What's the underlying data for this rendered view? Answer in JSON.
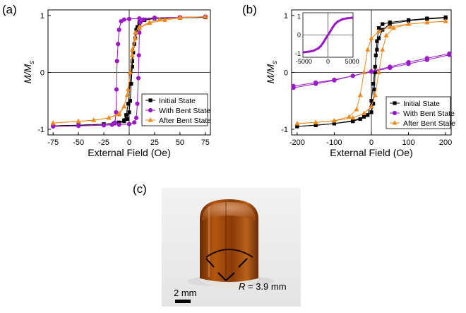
{
  "panel_labels": {
    "a": "(a)",
    "b": "(b)",
    "c": "(c)"
  },
  "colors": {
    "initial": "#000000",
    "bent": "#9b19c8",
    "after": "#f0891b"
  },
  "chart_data": [
    {
      "id": "a",
      "type": "scatter",
      "xlabel": "External Field (Oe)",
      "ylabel_main": "M/M",
      "ylabel_sub": "s",
      "xlim": [
        -80,
        80
      ],
      "ylim": [
        -1.1,
        1.1
      ],
      "xticks": [
        -75,
        -50,
        -25,
        0,
        25,
        50,
        75
      ],
      "xtick_labels": [
        "-75",
        "-50",
        "-25",
        "0",
        "25",
        "50",
        "75"
      ],
      "yticks": [
        1,
        0,
        -1
      ],
      "ytick_labels": [
        "1",
        "0",
        "-1"
      ],
      "legend_position": "bottom-right",
      "series": [
        {
          "name": "Initial State",
          "marker": "square",
          "color": "#000000",
          "sweep_down": [
            [
              75,
              0.97
            ],
            [
              50,
              0.96
            ],
            [
              25,
              0.95
            ],
            [
              15,
              0.93
            ],
            [
              10,
              0.88
            ],
            [
              8,
              0.8
            ],
            [
              6,
              0.6
            ],
            [
              4,
              0.35
            ],
            [
              3,
              0.1
            ],
            [
              2,
              -0.2
            ],
            [
              1,
              -0.5
            ],
            [
              0,
              -0.7
            ],
            [
              -2,
              -0.82
            ],
            [
              -5,
              -0.86
            ],
            [
              -10,
              -0.89
            ],
            [
              -25,
              -0.91
            ],
            [
              -50,
              -0.93
            ],
            [
              -75,
              -0.94
            ]
          ],
          "sweep_up": [
            [
              -75,
              -0.94
            ],
            [
              -50,
              -0.93
            ],
            [
              -25,
              -0.91
            ],
            [
              -15,
              -0.9
            ],
            [
              -10,
              -0.88
            ],
            [
              -5,
              -0.84
            ],
            [
              -3,
              -0.75
            ],
            [
              -1,
              -0.55
            ],
            [
              1,
              -0.2
            ],
            [
              3,
              0.2
            ],
            [
              5,
              0.5
            ],
            [
              7,
              0.75
            ],
            [
              10,
              0.86
            ],
            [
              15,
              0.92
            ],
            [
              25,
              0.95
            ],
            [
              50,
              0.96
            ],
            [
              75,
              0.97
            ]
          ]
        },
        {
          "name": "With Bent State",
          "marker": "circle",
          "color": "#9b19c8",
          "sweep_down": [
            [
              75,
              0.98
            ],
            [
              50,
              0.97
            ],
            [
              25,
              0.96
            ],
            [
              10,
              0.95
            ],
            [
              0,
              0.94
            ],
            [
              -5,
              0.93
            ],
            [
              -8,
              0.9
            ],
            [
              -10,
              0.75
            ],
            [
              -11,
              0.5
            ],
            [
              -12,
              0.2
            ],
            [
              -12.5,
              -0.3
            ],
            [
              -13,
              -0.7
            ],
            [
              -14,
              -0.88
            ],
            [
              -17,
              -0.92
            ],
            [
              -25,
              -0.93
            ],
            [
              -50,
              -0.94
            ],
            [
              -75,
              -0.95
            ]
          ],
          "sweep_up": [
            [
              -75,
              -0.95
            ],
            [
              -50,
              -0.94
            ],
            [
              -25,
              -0.93
            ],
            [
              -10,
              -0.92
            ],
            [
              0,
              -0.91
            ],
            [
              5,
              -0.88
            ],
            [
              7,
              -0.8
            ],
            [
              8,
              -0.55
            ],
            [
              9,
              -0.1
            ],
            [
              9.5,
              0.3
            ],
            [
              10,
              0.7
            ],
            [
              11,
              0.88
            ],
            [
              14,
              0.93
            ],
            [
              25,
              0.96
            ],
            [
              50,
              0.97
            ],
            [
              75,
              0.98
            ]
          ]
        },
        {
          "name": "After Bent State",
          "marker": "triangle",
          "color": "#f0891b",
          "sweep_down": [
            [
              75,
              0.98
            ],
            [
              50,
              0.97
            ],
            [
              30,
              0.93
            ],
            [
              20,
              0.88
            ],
            [
              10,
              0.8
            ],
            [
              6,
              0.7
            ],
            [
              3,
              0.4
            ],
            [
              1,
              0.0
            ],
            [
              -2,
              -0.4
            ],
            [
              -5,
              -0.6
            ],
            [
              -10,
              -0.72
            ],
            [
              -20,
              -0.8
            ],
            [
              -35,
              -0.84
            ],
            [
              -50,
              -0.86
            ],
            [
              -75,
              -0.89
            ]
          ],
          "sweep_up": [
            [
              -75,
              -0.89
            ],
            [
              -50,
              -0.86
            ],
            [
              -35,
              -0.84
            ],
            [
              -20,
              -0.8
            ],
            [
              -10,
              -0.74
            ],
            [
              -5,
              -0.6
            ],
            [
              -1,
              -0.3
            ],
            [
              1,
              0.0
            ],
            [
              3,
              0.3
            ],
            [
              6,
              0.6
            ],
            [
              10,
              0.78
            ],
            [
              20,
              0.87
            ],
            [
              35,
              0.92
            ],
            [
              50,
              0.96
            ],
            [
              75,
              0.98
            ]
          ]
        }
      ]
    },
    {
      "id": "b",
      "type": "scatter",
      "xlabel": "External Field (Oe)",
      "ylabel_main": "M/M",
      "ylabel_sub": "s",
      "xlim": [
        -215,
        215
      ],
      "ylim": [
        -1.1,
        1.1
      ],
      "xticks": [
        -200,
        -100,
        0,
        100,
        200
      ],
      "xtick_labels": [
        "-200",
        "-100",
        "0",
        "100",
        "200"
      ],
      "yticks": [
        1,
        0,
        -1
      ],
      "ytick_labels": [
        "1",
        "0",
        "-1"
      ],
      "legend_position": "bottom-right",
      "series": [
        {
          "name": "Initial State",
          "marker": "square",
          "color": "#000000",
          "sweep_down": [
            [
              200,
              0.97
            ],
            [
              150,
              0.95
            ],
            [
              100,
              0.92
            ],
            [
              50,
              0.88
            ],
            [
              30,
              0.85
            ],
            [
              20,
              0.78
            ],
            [
              15,
              0.55
            ],
            [
              12,
              0.3
            ],
            [
              10,
              0.0
            ],
            [
              8,
              -0.3
            ],
            [
              5,
              -0.55
            ],
            [
              0,
              -0.7
            ],
            [
              -20,
              -0.78
            ],
            [
              -50,
              -0.85
            ],
            [
              -100,
              -0.9
            ],
            [
              -150,
              -0.93
            ],
            [
              -200,
              -0.95
            ]
          ],
          "sweep_up": [
            [
              -200,
              -0.95
            ],
            [
              -150,
              -0.93
            ],
            [
              -100,
              -0.9
            ],
            [
              -50,
              -0.86
            ],
            [
              -30,
              -0.82
            ],
            [
              -10,
              -0.75
            ],
            [
              0,
              -0.5
            ],
            [
              5,
              -0.2
            ],
            [
              10,
              0.1
            ],
            [
              15,
              0.4
            ],
            [
              20,
              0.6
            ],
            [
              30,
              0.75
            ],
            [
              50,
              0.85
            ],
            [
              100,
              0.91
            ],
            [
              150,
              0.94
            ],
            [
              200,
              0.96
            ]
          ]
        },
        {
          "name": "With Bent State",
          "marker": "circle",
          "color": "#9b19c8",
          "sweep_down": [
            [
              210,
              0.33
            ],
            [
              150,
              0.25
            ],
            [
              100,
              0.18
            ],
            [
              50,
              0.1
            ],
            [
              0,
              0.02
            ],
            [
              -50,
              -0.06
            ],
            [
              -100,
              -0.13
            ],
            [
              -150,
              -0.18
            ],
            [
              -210,
              -0.24
            ]
          ],
          "sweep_up": [
            [
              -210,
              -0.27
            ],
            [
              -150,
              -0.2
            ],
            [
              -100,
              -0.14
            ],
            [
              -50,
              -0.06
            ],
            [
              0,
              0.01
            ],
            [
              50,
              0.08
            ],
            [
              100,
              0.15
            ],
            [
              150,
              0.22
            ],
            [
              210,
              0.31
            ]
          ]
        },
        {
          "name": "After Bent State",
          "marker": "triangle",
          "color": "#f0891b",
          "sweep_down": [
            [
              200,
              0.9
            ],
            [
              150,
              0.88
            ],
            [
              100,
              0.85
            ],
            [
              50,
              0.8
            ],
            [
              20,
              0.72
            ],
            [
              0,
              0.6
            ],
            [
              -10,
              0.4
            ],
            [
              -20,
              0.0
            ],
            [
              -30,
              -0.4
            ],
            [
              -40,
              -0.65
            ],
            [
              -60,
              -0.78
            ],
            [
              -100,
              -0.85
            ],
            [
              -150,
              -0.88
            ],
            [
              -200,
              -0.9
            ]
          ],
          "sweep_up": [
            [
              -200,
              -0.9
            ],
            [
              -150,
              -0.88
            ],
            [
              -100,
              -0.85
            ],
            [
              -50,
              -0.8
            ],
            [
              -20,
              -0.72
            ],
            [
              0,
              -0.6
            ],
            [
              10,
              -0.4
            ],
            [
              20,
              0.0
            ],
            [
              30,
              0.4
            ],
            [
              40,
              0.65
            ],
            [
              60,
              0.78
            ],
            [
              100,
              0.85
            ],
            [
              150,
              0.88
            ],
            [
              200,
              0.9
            ]
          ]
        }
      ],
      "inset": {
        "xlim": [
          -5200,
          5200
        ],
        "ylim": [
          -1.2,
          1.2
        ],
        "xticks": [
          -5000,
          0,
          5000
        ],
        "xtick_labels": [
          "-5000",
          "0",
          "5000"
        ],
        "yticks": [
          1,
          0,
          -1
        ],
        "ytick_labels": [
          "1",
          "0",
          "-1"
        ],
        "color": "#9b19c8",
        "points": [
          [
            -5000,
            -0.93
          ],
          [
            -4000,
            -0.9
          ],
          [
            -3000,
            -0.85
          ],
          [
            -2000,
            -0.72
          ],
          [
            -1500,
            -0.6
          ],
          [
            -1000,
            -0.42
          ],
          [
            -500,
            -0.2
          ],
          [
            0,
            0.0
          ],
          [
            500,
            0.2
          ],
          [
            1000,
            0.42
          ],
          [
            1500,
            0.6
          ],
          [
            2000,
            0.72
          ],
          [
            3000,
            0.85
          ],
          [
            4000,
            0.9
          ],
          [
            5000,
            0.93
          ]
        ]
      }
    }
  ],
  "photo": {
    "label": "(c)",
    "radius_symbol": "R",
    "radius_text": " = 3.9 mm",
    "scale_bar_text": "2 mm"
  }
}
